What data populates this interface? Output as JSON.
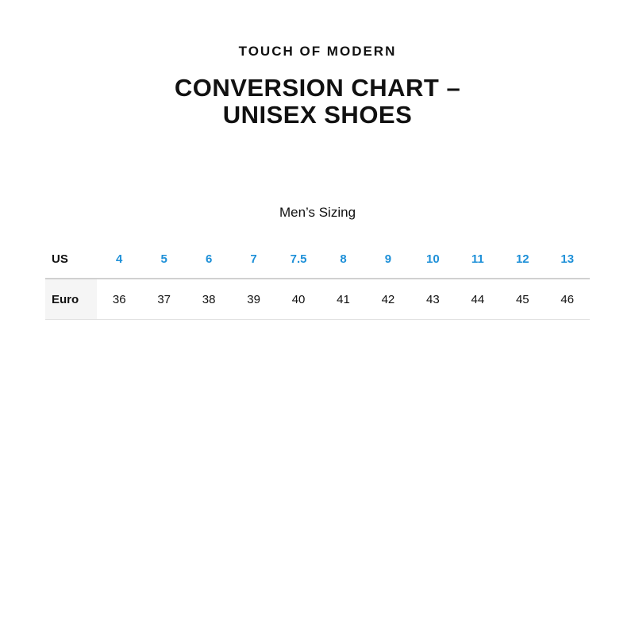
{
  "brand": "TOUCH OF MODERN",
  "title_line1": "CONVERSION CHART –",
  "title_line2": "UNISEX SHOES",
  "subtitle": "Men’s Sizing",
  "accent_color": "#1e90d8",
  "table": {
    "rows": [
      {
        "label": "US",
        "values": [
          "4",
          "5",
          "6",
          "7",
          "7.5",
          "8",
          "9",
          "10",
          "11",
          "12",
          "13"
        ]
      },
      {
        "label": "Euro",
        "values": [
          "36",
          "37",
          "38",
          "39",
          "40",
          "41",
          "42",
          "43",
          "44",
          "45",
          "46"
        ]
      }
    ]
  }
}
